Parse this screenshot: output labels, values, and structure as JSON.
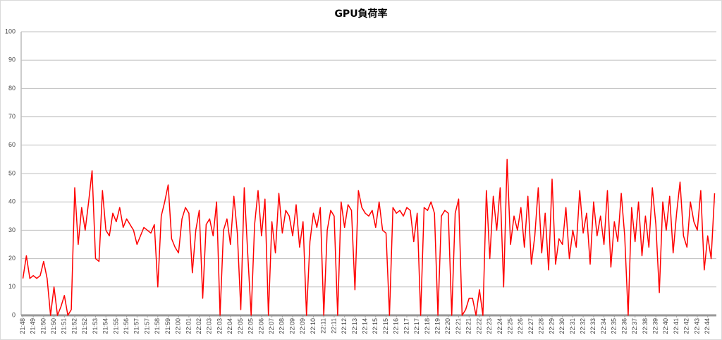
{
  "chart_data": {
    "type": "line",
    "title": "GPU負荷率",
    "categories": [
      "21:48",
      null,
      null,
      "21:49",
      null,
      null,
      "21:50",
      null,
      null,
      "21:50",
      null,
      null,
      "21:51",
      null,
      null,
      "21:52",
      null,
      null,
      "21:52",
      null,
      null,
      "21:53",
      null,
      null,
      "21:54",
      null,
      null,
      "21:55",
      null,
      null,
      "21:56",
      null,
      null,
      "21:57",
      null,
      null,
      "21:57",
      null,
      null,
      "21:58",
      null,
      null,
      "21:59",
      null,
      null,
      "22:00",
      null,
      null,
      "22:01",
      null,
      null,
      "22:02",
      null,
      null,
      "22:03",
      null,
      null,
      "22:03",
      null,
      null,
      "22:04",
      null,
      null,
      "22:05",
      null,
      null,
      "22:05",
      null,
      null,
      "22:06",
      null,
      null,
      "22:07",
      null,
      null,
      "22:08",
      null,
      null,
      "22:09",
      null,
      null,
      "22:09",
      null,
      null,
      "22:10",
      null,
      null,
      "22:11",
      null,
      null,
      "22:11",
      null,
      null,
      "22:12",
      null,
      null,
      "22:13",
      null,
      null,
      "22:14",
      null,
      null,
      "22:15",
      null,
      null,
      "22:15",
      null,
      null,
      "22:16",
      null,
      null,
      "22:17",
      null,
      null,
      "22:17",
      null,
      null,
      "22:18",
      null,
      null,
      "22:19",
      null,
      null,
      "22:20",
      null,
      null,
      "22:21",
      null,
      null,
      "22:21",
      null,
      null,
      "22:22",
      null,
      null,
      "22:23",
      null,
      null,
      "22:24",
      null,
      null,
      "22:25",
      null,
      null,
      "22:26",
      null,
      null,
      "22:27",
      null,
      null,
      "22:28",
      null,
      null,
      "22:29",
      null,
      null,
      "22:30",
      null,
      null,
      "22:31",
      null,
      null,
      "22:32",
      null,
      null,
      "22:33",
      null,
      null,
      "22:34",
      null,
      null,
      "22:35",
      null,
      null,
      "22:36",
      null,
      null,
      "22:37",
      null,
      null,
      "22:38",
      null,
      null,
      "22:39",
      null,
      null,
      "22:40",
      null,
      null,
      "22:41",
      null,
      null,
      "22:42",
      null,
      null,
      "22:43",
      null,
      null,
      "22:44",
      null,
      null
    ],
    "values": [
      13,
      21,
      13,
      14,
      13,
      14,
      19,
      13,
      0,
      10,
      0,
      3,
      7,
      0,
      2,
      45,
      25,
      38,
      30,
      40,
      51,
      20,
      19,
      44,
      30,
      28,
      36,
      33,
      38,
      31,
      34,
      32,
      30,
      25,
      28,
      31,
      30,
      29,
      32,
      10,
      35,
      40,
      46,
      27,
      24,
      22,
      34,
      38,
      36,
      15,
      30,
      37,
      6,
      32,
      34,
      28,
      40,
      0,
      30,
      34,
      25,
      42,
      29,
      2,
      45,
      22,
      0,
      32,
      44,
      28,
      41,
      0,
      33,
      22,
      43,
      29,
      37,
      35,
      28,
      39,
      24,
      33,
      0,
      26,
      36,
      31,
      38,
      0,
      30,
      37,
      35,
      0,
      40,
      31,
      39,
      37,
      9,
      44,
      38,
      36,
      35,
      37,
      31,
      40,
      30,
      29,
      0,
      38,
      36,
      37,
      35,
      38,
      37,
      26,
      36,
      0,
      38,
      37,
      40,
      36,
      0,
      35,
      37,
      36,
      0,
      36,
      41,
      0,
      2,
      6,
      6,
      0,
      9,
      0,
      44,
      20,
      42,
      30,
      45,
      10,
      55,
      25,
      35,
      30,
      38,
      24,
      42,
      18,
      28,
      45,
      22,
      36,
      16,
      48,
      18,
      27,
      25,
      38,
      20,
      30,
      24,
      44,
      29,
      36,
      18,
      40,
      28,
      35,
      25,
      44,
      17,
      33,
      26,
      43,
      28,
      0,
      38,
      26,
      40,
      21,
      35,
      24,
      45,
      32,
      8,
      40,
      30,
      42,
      22,
      36,
      47,
      28,
      24,
      40,
      33,
      30,
      44,
      16,
      28,
      20,
      43
    ],
    "color": "#ff0000",
    "ylim": [
      0,
      100
    ],
    "yticks": [
      0,
      10,
      20,
      30,
      40,
      50,
      60,
      70,
      80,
      90,
      100
    ],
    "grid": true
  }
}
